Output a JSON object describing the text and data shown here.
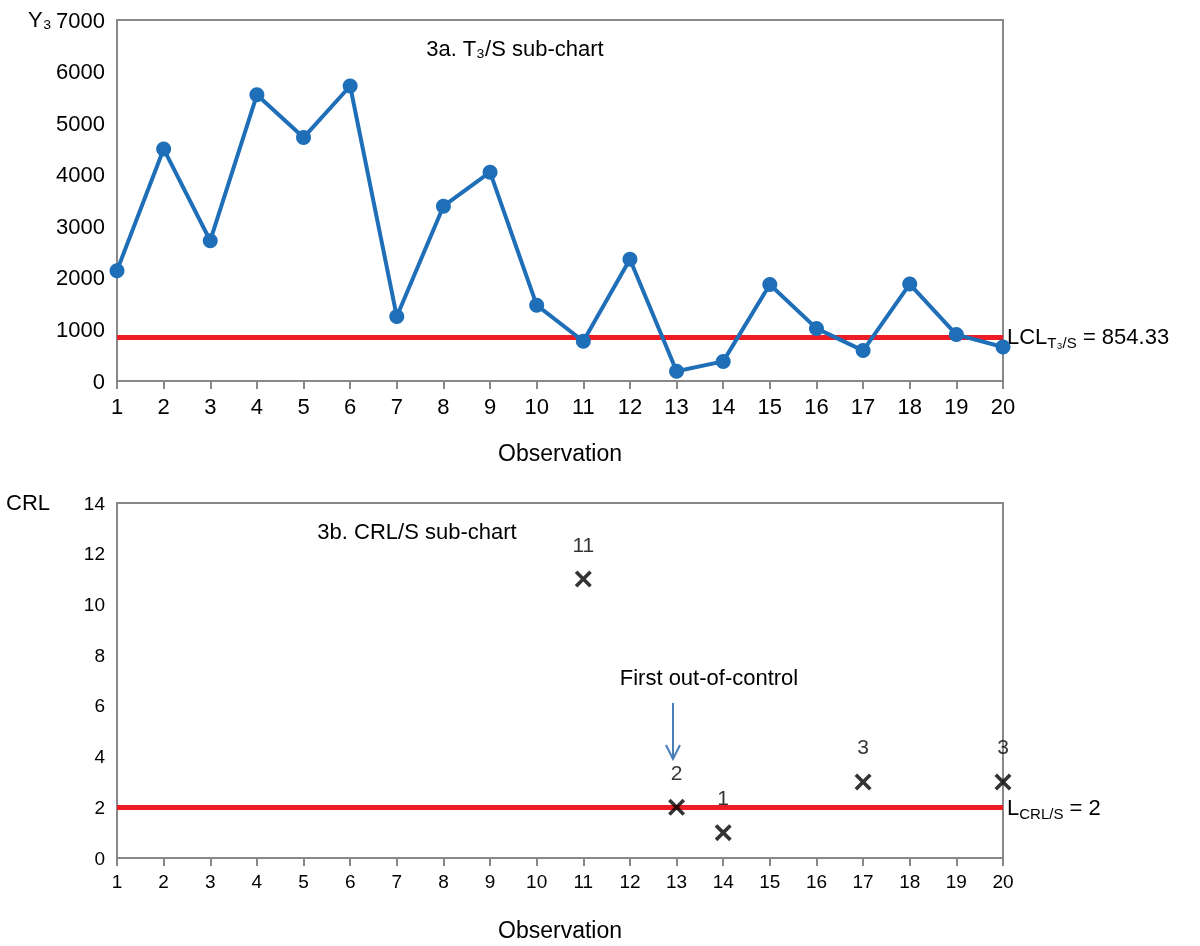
{
  "chart_data": [
    {
      "type": "line",
      "title": "3a. T₃/S sub-chart",
      "xlabel": "Observation",
      "ylabel": "Y₃",
      "x": [
        1,
        2,
        3,
        4,
        5,
        6,
        7,
        8,
        9,
        10,
        11,
        12,
        13,
        14,
        15,
        16,
        17,
        18,
        19,
        20
      ],
      "series": [
        {
          "color": "#1f6fb8",
          "values": [
            2140,
            4500,
            2720,
            5550,
            4720,
            5720,
            1250,
            3390,
            4050,
            1470,
            770,
            2360,
            190,
            380,
            1870,
            1020,
            590,
            1880,
            900,
            660
          ]
        }
      ],
      "xlim": [
        1,
        20
      ],
      "xticks": [
        1,
        2,
        3,
        4,
        5,
        6,
        7,
        8,
        9,
        10,
        11,
        12,
        13,
        14,
        15,
        16,
        17,
        18,
        19,
        20
      ],
      "ylim": [
        0,
        7000
      ],
      "yticks": [
        0,
        1000,
        2000,
        3000,
        4000,
        5000,
        6000,
        7000
      ],
      "ref_lines": [
        {
          "axis": "y",
          "value": 854.33,
          "label": "LCL$_{T₃/S}$ = 854.33",
          "color": "#ee1c25"
        }
      ],
      "marker": "circle",
      "grid": false
    },
    {
      "type": "scatter",
      "title": "3b. CRL/S sub-chart",
      "xlabel": "Observation",
      "ylabel": "CRL",
      "x": [
        11,
        13,
        14,
        17,
        20
      ],
      "series": [
        {
          "color": "#000000",
          "values": [
            11,
            2,
            1,
            3,
            3
          ]
        }
      ],
      "xlim": [
        1,
        20
      ],
      "xticks": [
        1,
        2,
        3,
        4,
        5,
        6,
        7,
        8,
        9,
        10,
        11,
        12,
        13,
        14,
        15,
        16,
        17,
        18,
        19,
        20
      ],
      "ylim": [
        0,
        14
      ],
      "yticks": [
        0,
        2,
        4,
        6,
        8,
        10,
        12,
        14
      ],
      "ref_lines": [
        {
          "axis": "y",
          "value": 2,
          "label": "L$_{CRL/S}$ = 2",
          "color": "#ee1c25"
        }
      ],
      "annotations": [
        "First out-of-control"
      ],
      "data_labels": true,
      "marker": "cross",
      "grid": false
    }
  ]
}
